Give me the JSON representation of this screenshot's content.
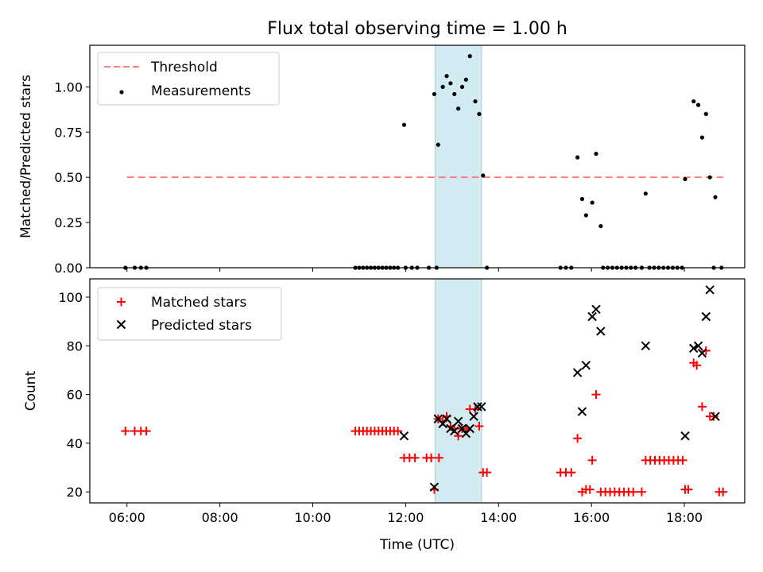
{
  "figure_title": "Flux total observing time = 1.00 h",
  "colors": {
    "threshold": "#ff7f7f",
    "measurement": "#000000",
    "matched": "#ff0000",
    "predicted": "#000000",
    "shade": "#add8e6"
  },
  "chart_data": [
    {
      "type": "scatter",
      "title": "Flux total observing time = 1.00 h",
      "xlabel": "",
      "ylabel": "Matched/Predicted stars",
      "xlim": [
        "05:12",
        "19:18"
      ],
      "ylim": [
        0,
        1.23
      ],
      "yticks": [
        "0.00",
        "0.25",
        "0.50",
        "0.75",
        "1.00"
      ],
      "shaded_span": [
        "12:38",
        "13:38"
      ],
      "legend": {
        "position": "upper-left",
        "entries": [
          "Threshold",
          "Measurements"
        ]
      },
      "series": [
        {
          "name": "Threshold",
          "style": "dashed-line",
          "points": [
            [
              "06:00",
              0.5
            ],
            [
              "18:50",
              0.5
            ]
          ]
        },
        {
          "name": "Measurements",
          "style": "dot",
          "points": [
            [
              "05:58",
              0.0
            ],
            [
              "06:10",
              0.0
            ],
            [
              "06:18",
              0.0
            ],
            [
              "06:25",
              0.0
            ],
            [
              "10:55",
              0.0
            ],
            [
              "11:00",
              0.0
            ],
            [
              "11:05",
              0.0
            ],
            [
              "11:10",
              0.0
            ],
            [
              "11:15",
              0.0
            ],
            [
              "11:20",
              0.0
            ],
            [
              "11:25",
              0.0
            ],
            [
              "11:30",
              0.0
            ],
            [
              "11:35",
              0.0
            ],
            [
              "11:40",
              0.0
            ],
            [
              "11:45",
              0.0
            ],
            [
              "11:50",
              0.0
            ],
            [
              "11:58",
              0.79
            ],
            [
              "12:00",
              0.0
            ],
            [
              "12:08",
              0.0
            ],
            [
              "12:15",
              0.0
            ],
            [
              "12:30",
              0.0
            ],
            [
              "12:40",
              0.0
            ],
            [
              "12:37",
              0.96
            ],
            [
              "12:42",
              0.68
            ],
            [
              "12:48",
              1.0
            ],
            [
              "12:53",
              1.06
            ],
            [
              "12:58",
              1.02
            ],
            [
              "13:03",
              0.96
            ],
            [
              "13:08",
              0.88
            ],
            [
              "13:13",
              1.0
            ],
            [
              "13:18",
              1.04
            ],
            [
              "13:23",
              1.17
            ],
            [
              "13:30",
              0.92
            ],
            [
              "13:35",
              0.85
            ],
            [
              "13:40",
              0.51
            ],
            [
              "13:45",
              0.0
            ],
            [
              "15:20",
              0.0
            ],
            [
              "15:27",
              0.0
            ],
            [
              "15:34",
              0.0
            ],
            [
              "15:42",
              0.61
            ],
            [
              "15:48",
              0.38
            ],
            [
              "15:53",
              0.29
            ],
            [
              "16:01",
              0.36
            ],
            [
              "16:06",
              0.63
            ],
            [
              "16:12",
              0.23
            ],
            [
              "16:15",
              0.0
            ],
            [
              "16:21",
              0.0
            ],
            [
              "16:27",
              0.0
            ],
            [
              "16:33",
              0.0
            ],
            [
              "16:39",
              0.0
            ],
            [
              "16:45",
              0.0
            ],
            [
              "16:51",
              0.0
            ],
            [
              "16:57",
              0.0
            ],
            [
              "17:05",
              0.0
            ],
            [
              "17:10",
              0.41
            ],
            [
              "17:15",
              0.0
            ],
            [
              "17:21",
              0.0
            ],
            [
              "17:27",
              0.0
            ],
            [
              "17:33",
              0.0
            ],
            [
              "17:39",
              0.0
            ],
            [
              "17:45",
              0.0
            ],
            [
              "17:51",
              0.0
            ],
            [
              "17:57",
              0.0
            ],
            [
              "18:01",
              0.49
            ],
            [
              "18:12",
              0.92
            ],
            [
              "18:18",
              0.9
            ],
            [
              "18:23",
              0.72
            ],
            [
              "18:28",
              0.85
            ],
            [
              "18:33",
              0.5
            ],
            [
              "18:40",
              0.39
            ],
            [
              "18:38",
              0.0
            ],
            [
              "18:48",
              0.0
            ]
          ]
        }
      ]
    },
    {
      "type": "scatter",
      "xlabel": "Time (UTC)",
      "ylabel": "Count",
      "xlim": [
        "05:12",
        "19:18"
      ],
      "ylim": [
        15.5,
        107.5
      ],
      "xticks": [
        "06:00",
        "08:00",
        "10:00",
        "12:00",
        "14:00",
        "16:00",
        "18:00"
      ],
      "yticks": [
        "20",
        "40",
        "60",
        "80",
        "100"
      ],
      "shaded_span": [
        "12:38",
        "13:38"
      ],
      "legend": {
        "position": "upper-left",
        "entries": [
          "Matched stars",
          "Predicted stars"
        ]
      },
      "series": [
        {
          "name": "Matched stars",
          "style": "plus",
          "points": [
            [
              "05:58",
              45
            ],
            [
              "06:10",
              45
            ],
            [
              "06:18",
              45
            ],
            [
              "06:25",
              45
            ],
            [
              "10:55",
              45
            ],
            [
              "11:00",
              45
            ],
            [
              "11:05",
              45
            ],
            [
              "11:10",
              45
            ],
            [
              "11:15",
              45
            ],
            [
              "11:20",
              45
            ],
            [
              "11:25",
              45
            ],
            [
              "11:30",
              45
            ],
            [
              "11:35",
              45
            ],
            [
              "11:40",
              45
            ],
            [
              "11:45",
              45
            ],
            [
              "11:50",
              45
            ],
            [
              "11:58",
              34
            ],
            [
              "12:05",
              34
            ],
            [
              "12:12",
              34
            ],
            [
              "12:27",
              34
            ],
            [
              "12:33",
              34
            ],
            [
              "12:43",
              34
            ],
            [
              "12:37",
              21
            ],
            [
              "12:42",
              50
            ],
            [
              "12:48",
              49
            ],
            [
              "12:53",
              51
            ],
            [
              "12:58",
              47
            ],
            [
              "13:03",
              46
            ],
            [
              "13:08",
              43
            ],
            [
              "13:13",
              46
            ],
            [
              "13:18",
              46
            ],
            [
              "13:23",
              54
            ],
            [
              "13:30",
              54
            ],
            [
              "13:35",
              47
            ],
            [
              "13:40",
              28
            ],
            [
              "13:45",
              28
            ],
            [
              "15:20",
              28
            ],
            [
              "15:27",
              28
            ],
            [
              "15:34",
              28
            ],
            [
              "15:42",
              42
            ],
            [
              "15:48",
              20
            ],
            [
              "15:53",
              21
            ],
            [
              "15:58",
              21
            ],
            [
              "16:01",
              33
            ],
            [
              "16:06",
              60
            ],
            [
              "16:12",
              20
            ],
            [
              "16:18",
              20
            ],
            [
              "16:24",
              20
            ],
            [
              "16:30",
              20
            ],
            [
              "16:36",
              20
            ],
            [
              "16:42",
              20
            ],
            [
              "16:48",
              20
            ],
            [
              "16:54",
              20
            ],
            [
              "17:05",
              20
            ],
            [
              "17:10",
              33
            ],
            [
              "17:16",
              33
            ],
            [
              "17:22",
              33
            ],
            [
              "17:28",
              33
            ],
            [
              "17:34",
              33
            ],
            [
              "17:40",
              33
            ],
            [
              "17:46",
              33
            ],
            [
              "17:52",
              33
            ],
            [
              "17:58",
              33
            ],
            [
              "18:01",
              21
            ],
            [
              "18:05",
              21
            ],
            [
              "18:12",
              73
            ],
            [
              "18:16",
              72
            ],
            [
              "18:23",
              55
            ],
            [
              "18:28",
              78
            ],
            [
              "18:33",
              51
            ],
            [
              "18:38",
              51
            ],
            [
              "18:45",
              20
            ],
            [
              "18:50",
              20
            ]
          ]
        },
        {
          "name": "Predicted stars",
          "style": "x",
          "points": [
            [
              "11:58",
              43
            ],
            [
              "12:37",
              22
            ],
            [
              "12:42",
              50
            ],
            [
              "12:48",
              48
            ],
            [
              "12:53",
              50
            ],
            [
              "12:58",
              46
            ],
            [
              "13:03",
              45
            ],
            [
              "13:08",
              49
            ],
            [
              "13:13",
              46
            ],
            [
              "13:18",
              44
            ],
            [
              "13:23",
              46
            ],
            [
              "13:28",
              51
            ],
            [
              "13:33",
              55
            ],
            [
              "13:38",
              55
            ],
            [
              "15:42",
              69
            ],
            [
              "15:48",
              53
            ],
            [
              "15:53",
              72
            ],
            [
              "16:01",
              92
            ],
            [
              "16:06",
              95
            ],
            [
              "16:12",
              86
            ],
            [
              "17:10",
              80
            ],
            [
              "18:01",
              43
            ],
            [
              "18:12",
              79
            ],
            [
              "18:18",
              80
            ],
            [
              "18:23",
              77
            ],
            [
              "18:28",
              92
            ],
            [
              "18:33",
              103
            ],
            [
              "18:40",
              51
            ]
          ]
        }
      ]
    }
  ]
}
